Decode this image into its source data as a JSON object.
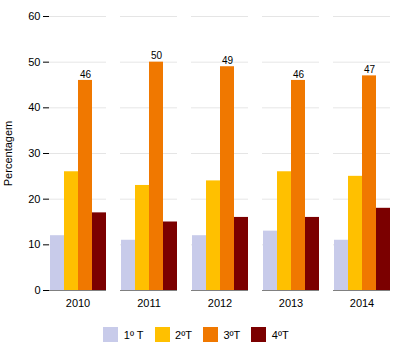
{
  "chart_data": {
    "type": "bar",
    "categories": [
      "2010",
      "2011",
      "2012",
      "2013",
      "2014"
    ],
    "series": [
      {
        "name": "1º T",
        "color": "#c8cbea",
        "values": [
          12,
          11,
          12,
          13,
          11
        ]
      },
      {
        "name": "2ºT",
        "color": "#ffc000",
        "values": [
          26,
          23,
          24,
          26,
          25
        ]
      },
      {
        "name": "3ºT",
        "color": "#f07800",
        "values": [
          46,
          50,
          49,
          46,
          47
        ],
        "data_labels": true
      },
      {
        "name": "4ºT",
        "color": "#7b0000",
        "values": [
          17,
          15,
          16,
          16,
          18
        ]
      }
    ],
    "ylabel": "Percentagem",
    "ylim": [
      0,
      60
    ],
    "yticks": [
      0,
      10,
      20,
      30,
      40,
      50,
      60
    ],
    "grid": true,
    "legend": "bottom"
  }
}
